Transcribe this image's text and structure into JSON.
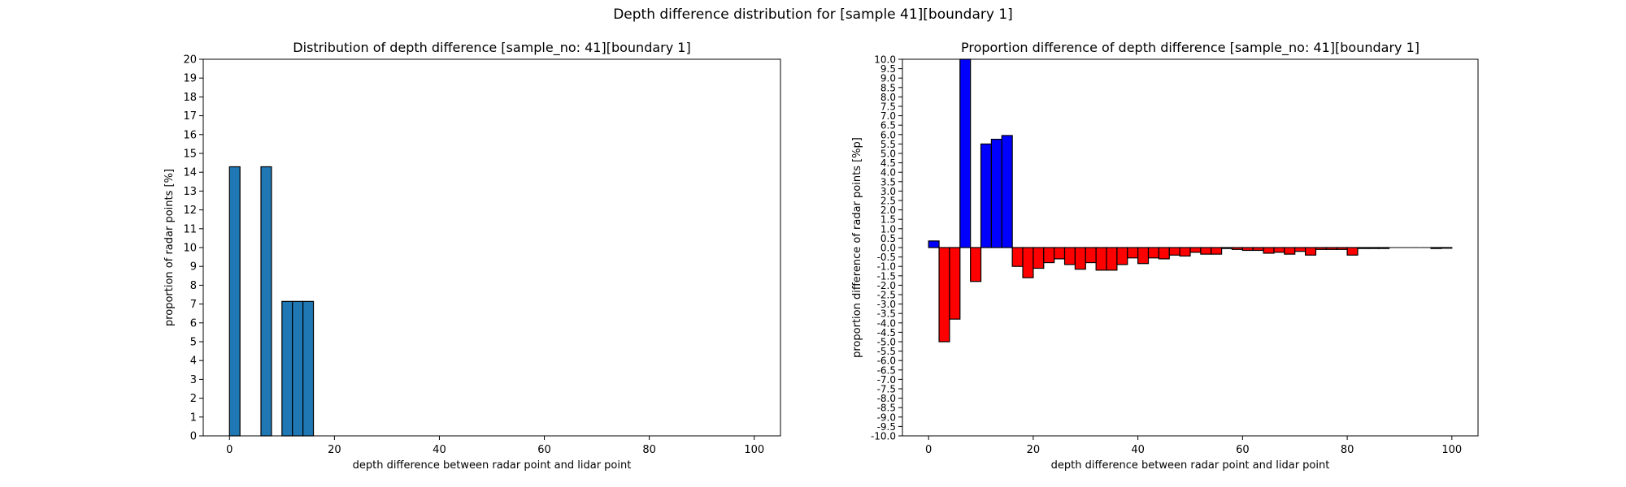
{
  "suptitle": "Depth difference distribution for [sample 41][boundary 1]",
  "chart_data": [
    {
      "type": "bar",
      "title": "Distribution of depth difference [sample_no: 41][boundary 1]",
      "xlabel": "depth difference between radar point and lidar point",
      "ylabel": "proportion of radar points [%]",
      "xlim": [
        -5,
        105
      ],
      "ylim": [
        0,
        20
      ],
      "x_ticks": [
        0,
        20,
        40,
        60,
        80,
        100
      ],
      "y_ticks": [
        0,
        1,
        2,
        3,
        4,
        5,
        6,
        7,
        8,
        9,
        10,
        11,
        12,
        13,
        14,
        15,
        16,
        17,
        18,
        19,
        20
      ],
      "bar_width": 2,
      "bar_color": "#1f77b4",
      "edge_color": "#000000",
      "x": [
        1,
        7,
        11,
        13,
        15
      ],
      "values": [
        14.29,
        14.29,
        7.14,
        7.14,
        7.14
      ]
    },
    {
      "type": "bar",
      "title": "Proportion difference of depth difference [sample_no: 41][boundary 1]",
      "xlabel": "depth difference between radar point and lidar point",
      "ylabel": "proportion difference of radar points [%p]",
      "xlim": [
        -5,
        105
      ],
      "ylim": [
        -10,
        10
      ],
      "x_ticks": [
        0,
        20,
        40,
        60,
        80,
        100
      ],
      "y_ticks": [
        "-10.0",
        "-9.5",
        "-9.0",
        "-8.5",
        "-8.0",
        "-7.5",
        "-7.0",
        "-6.5",
        "-6.0",
        "-5.5",
        "-5.0",
        "-4.5",
        "-4.0",
        "-3.5",
        "-3.0",
        "-2.5",
        "-2.0",
        "-1.5",
        "-1.0",
        "-0.5",
        "0.0",
        "0.5",
        "1.0",
        "1.5",
        "2.0",
        "2.5",
        "3.0",
        "3.5",
        "4.0",
        "4.5",
        "5.0",
        "5.5",
        "6.0",
        "6.5",
        "7.0",
        "7.5",
        "8.0",
        "8.5",
        "9.0",
        "9.5",
        "10.0"
      ],
      "bar_width": 2,
      "positive_color": "#0000ff",
      "negative_color": "#ff0000",
      "edge_color": "#000000",
      "x": [
        1,
        3,
        5,
        7,
        9,
        11,
        13,
        15,
        17,
        19,
        21,
        23,
        25,
        27,
        29,
        31,
        33,
        35,
        37,
        39,
        41,
        43,
        45,
        47,
        49,
        51,
        53,
        55,
        57,
        59,
        61,
        63,
        65,
        67,
        69,
        71,
        73,
        75,
        77,
        79,
        81,
        83,
        85,
        87,
        89,
        91,
        93,
        95,
        97,
        99
      ],
      "values": [
        0.35,
        -5.0,
        -3.8,
        10.2,
        -1.8,
        5.5,
        5.75,
        5.95,
        -1.0,
        -1.6,
        -1.1,
        -0.8,
        -0.6,
        -0.9,
        -1.15,
        -0.8,
        -1.2,
        -1.2,
        -0.9,
        -0.55,
        -0.85,
        -0.55,
        -0.6,
        -0.4,
        -0.45,
        -0.25,
        -0.35,
        -0.35,
        -0.05,
        -0.1,
        -0.15,
        -0.15,
        -0.3,
        -0.25,
        -0.35,
        -0.2,
        -0.4,
        -0.1,
        -0.1,
        -0.1,
        -0.4,
        -0.05,
        -0.05,
        -0.05,
        0,
        0,
        0,
        0,
        -0.05,
        -0.03
      ]
    }
  ]
}
